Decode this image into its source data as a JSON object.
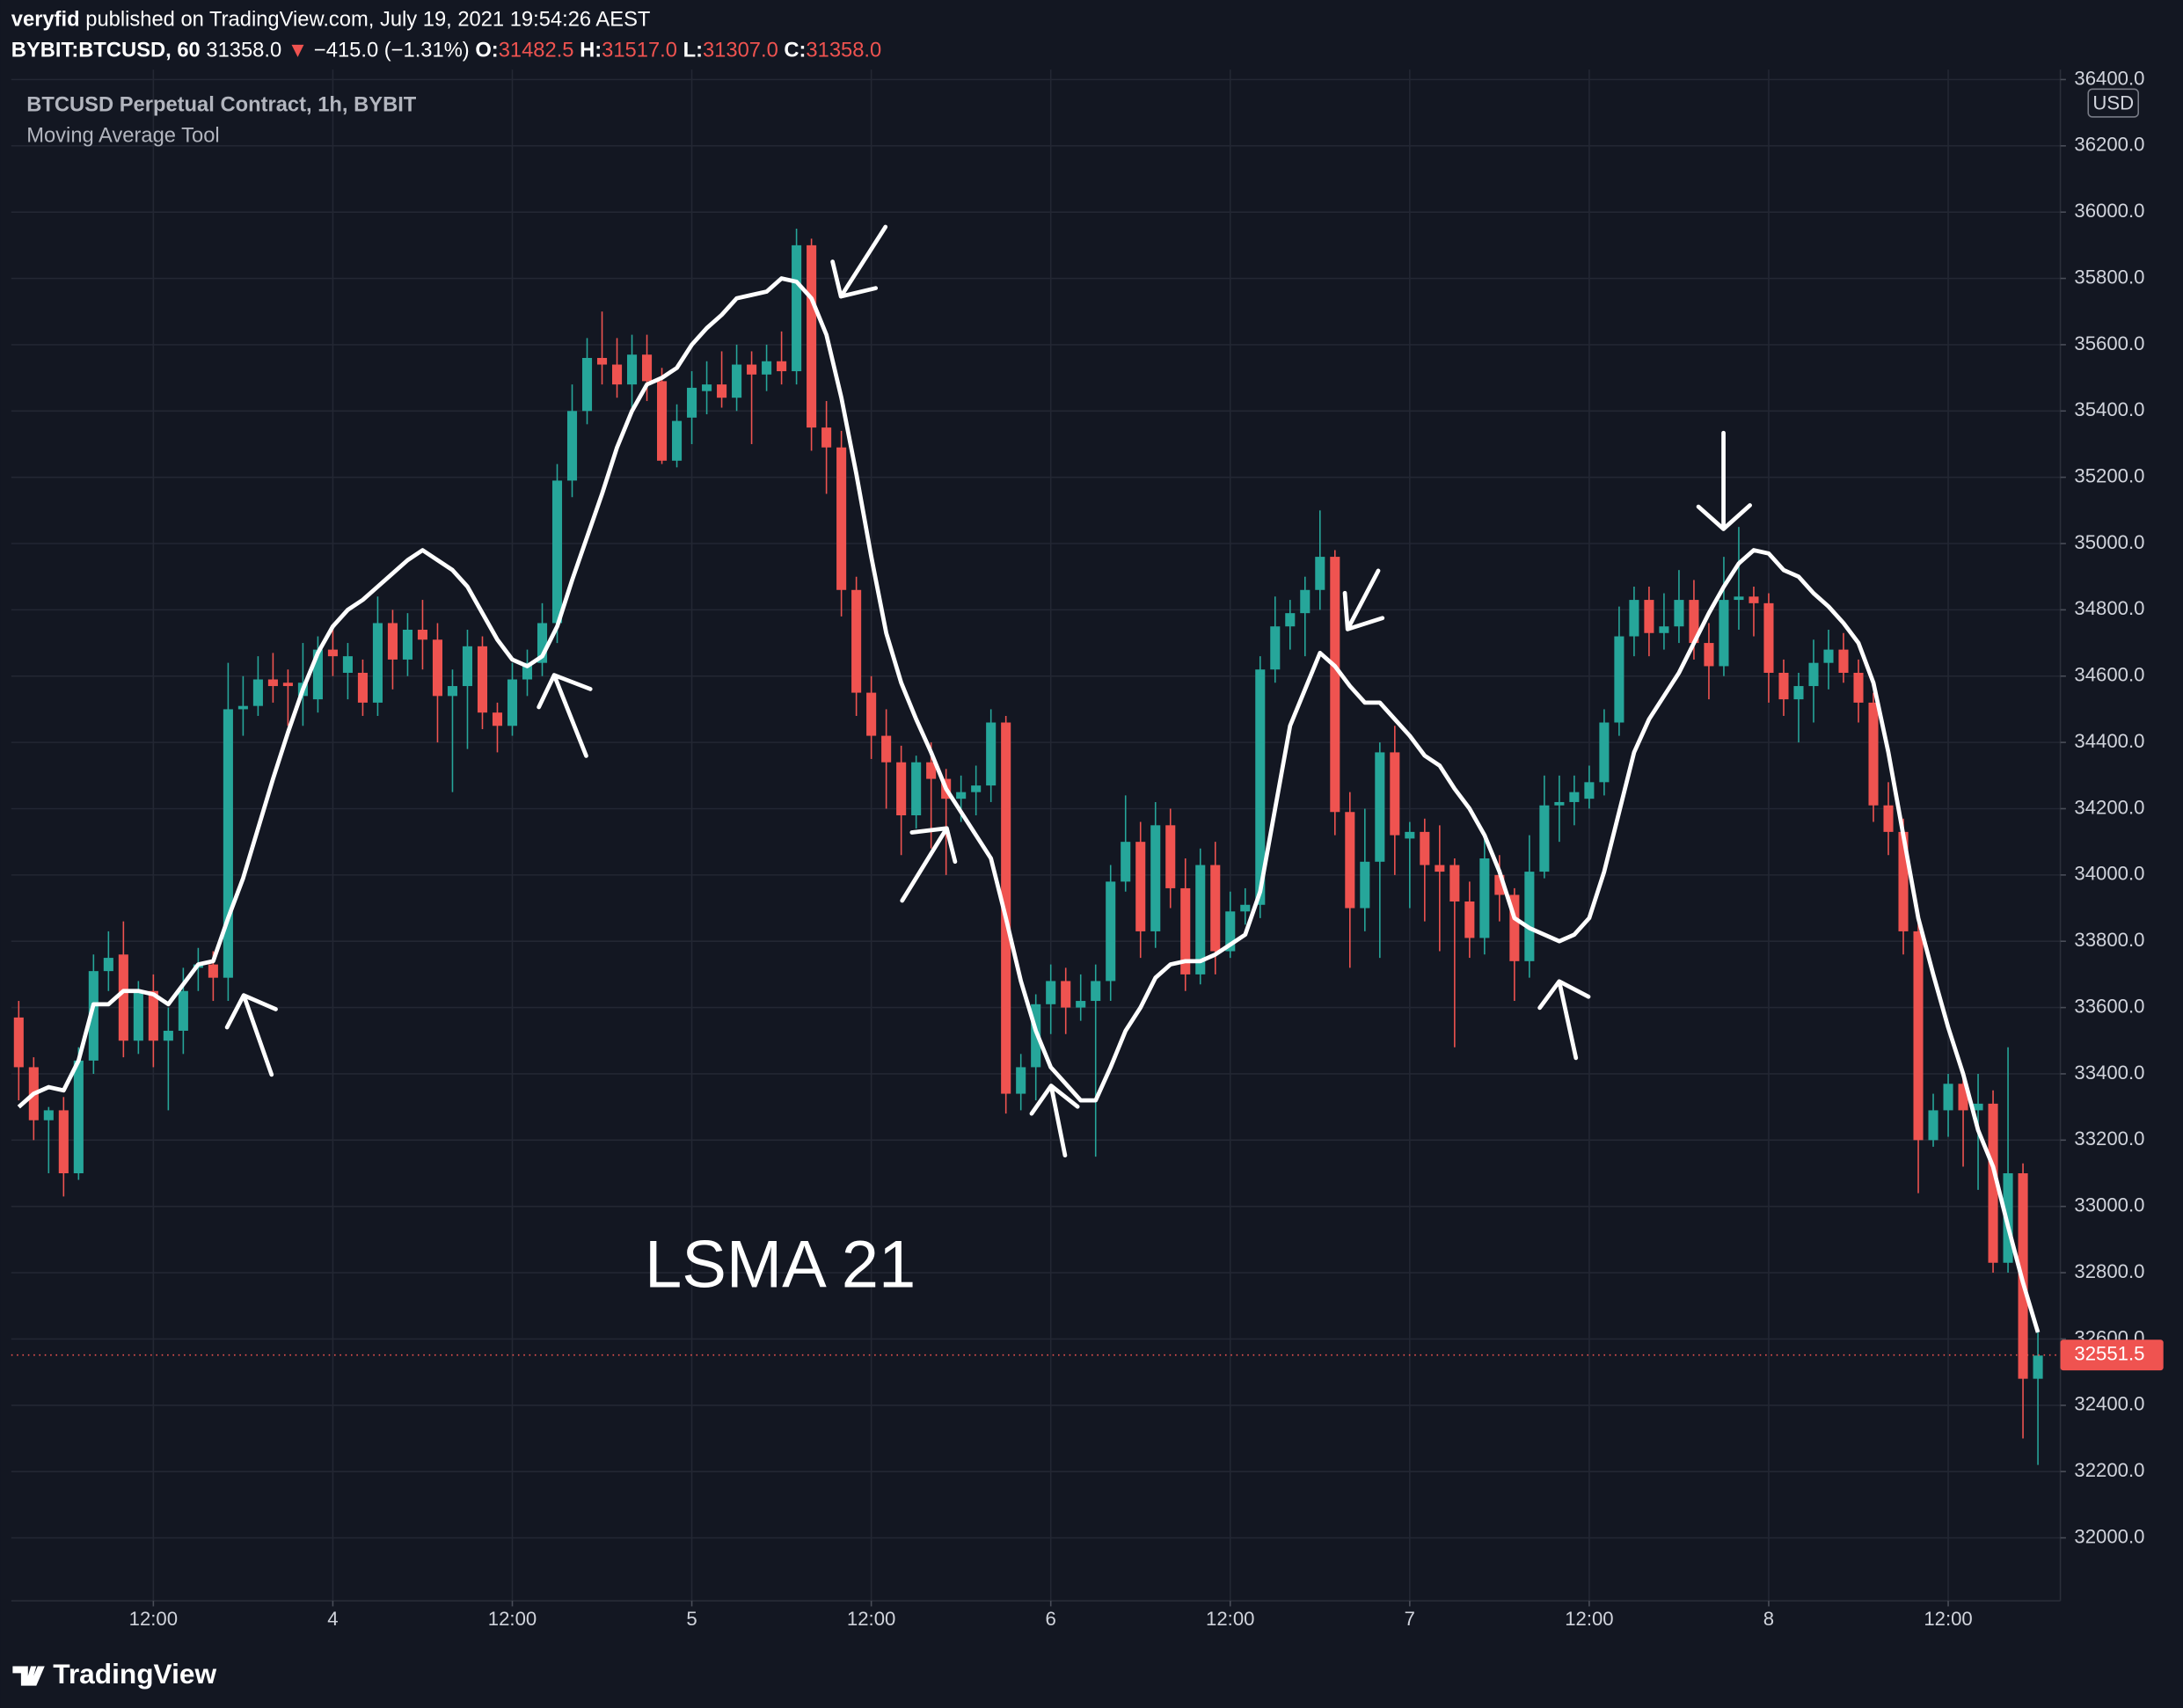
{
  "header": {
    "author": "veryfid",
    "published": "published on TradingView.com, July 19, 2021 19:54:26 AEST"
  },
  "quote": {
    "symbol": "BYBIT:BTCUSD, 60",
    "last": "31358.0",
    "change": "−415.0 (−1.31%)",
    "fields": [
      {
        "label": "O:",
        "value": "31482.5"
      },
      {
        "label": "H:",
        "value": "31517.0"
      },
      {
        "label": "L:",
        "value": "31307.0"
      },
      {
        "label": "C:",
        "value": "31358.0"
      }
    ]
  },
  "chart_data": {
    "type": "candlestick",
    "title": "BTCUSD Perpetual Contract, 1h, BYBIT",
    "annotation": "LSMA 21",
    "unit": "USD",
    "last_price": 32551.5,
    "up_color": "#26a69a",
    "down_color": "#ef5350",
    "grid": true,
    "open": [
      33570,
      33420,
      33260,
      33290,
      33100,
      33440,
      33710,
      33760,
      33500,
      33650,
      33500,
      33530,
      33720,
      33730,
      33690,
      34500,
      34510,
      34590,
      34580,
      34540,
      34530,
      34680,
      34610,
      34610,
      34520,
      34760,
      34650,
      34740,
      34710,
      34540,
      34570,
      34690,
      34490,
      34450,
      34590,
      34640,
      34760,
      35190,
      35400,
      35560,
      35540,
      35480,
      35570,
      35490,
      35250,
      35380,
      35460,
      35480,
      35440,
      35540,
      35510,
      35550,
      35520,
      35900,
      35350,
      35290,
      34860,
      34550,
      34420,
      34340,
      34180,
      34340,
      34290,
      34230,
      34250,
      34270,
      34460,
      33340,
      33420,
      33610,
      33680,
      33600,
      33620,
      33680,
      33980,
      34100,
      33830,
      34150,
      33960,
      33700,
      34030,
      33770,
      33890,
      33910,
      34620,
      34750,
      34790,
      34860,
      34960,
      34190,
      33900,
      34040,
      34370,
      34110,
      34130,
      34030,
      34030,
      33920,
      33810,
      34000,
      33940,
      33740,
      34010,
      34210,
      34220,
      34230,
      34280,
      34460,
      34720,
      34830,
      34730,
      34750,
      34830,
      34700,
      34630,
      34830,
      34840,
      34820,
      34610,
      34530,
      34570,
      34640,
      34680,
      34610,
      34520,
      34210,
      34130,
      33830,
      33200,
      33290,
      33370,
      33290,
      33310,
      32830,
      33100,
      32480
    ],
    "high": [
      33620,
      33450,
      33300,
      33330,
      33480,
      33760,
      33830,
      33860,
      33680,
      33700,
      33600,
      33720,
      33780,
      33770,
      34640,
      34600,
      34660,
      34670,
      34620,
      34700,
      34720,
      34740,
      34700,
      34650,
      34840,
      34800,
      34790,
      34830,
      34760,
      34620,
      34740,
      34720,
      34520,
      34640,
      34680,
      34820,
      35240,
      35480,
      35620,
      35700,
      35620,
      35630,
      35630,
      35530,
      35420,
      35520,
      35550,
      35580,
      35600,
      35580,
      35600,
      35640,
      35950,
      35920,
      35430,
      35340,
      34900,
      34600,
      34500,
      34390,
      34360,
      34400,
      34320,
      34300,
      34330,
      34500,
      34480,
      33460,
      33640,
      33730,
      33720,
      33700,
      33730,
      34030,
      34240,
      34160,
      34220,
      34200,
      34050,
      34080,
      34100,
      33950,
      33960,
      34660,
      34840,
      34830,
      34900,
      35100,
      34980,
      34250,
      34200,
      34400,
      34450,
      34160,
      34170,
      34150,
      34050,
      33980,
      34110,
      34060,
      33960,
      34120,
      34300,
      34300,
      34300,
      34330,
      34500,
      34810,
      34870,
      34870,
      34850,
      34920,
      34890,
      34760,
      34960,
      35050,
      34870,
      34850,
      34650,
      34610,
      34710,
      34740,
      34730,
      34650,
      34550,
      34280,
      34170,
      33860,
      33340,
      33400,
      33400,
      33400,
      33350,
      33480,
      33130,
      32620
    ],
    "low": [
      33320,
      33200,
      33100,
      33030,
      33080,
      33400,
      33650,
      33450,
      33460,
      33420,
      33290,
      33460,
      33650,
      33620,
      33620,
      34420,
      34480,
      34520,
      34450,
      34450,
      34490,
      34600,
      34530,
      34480,
      34480,
      34560,
      34600,
      34620,
      34400,
      34250,
      34380,
      34440,
      34370,
      34420,
      34540,
      34600,
      34700,
      35140,
      35360,
      35480,
      35440,
      35410,
      35430,
      35240,
      35230,
      35300,
      35390,
      35410,
      35400,
      35300,
      35460,
      35480,
      35480,
      35280,
      35150,
      34780,
      34480,
      34350,
      34200,
      34060,
      34140,
      34080,
      34000,
      34160,
      34180,
      34220,
      33280,
      33290,
      33320,
      33520,
      33520,
      33560,
      33150,
      33620,
      33950,
      33750,
      33780,
      33900,
      33650,
      33670,
      33700,
      33750,
      33850,
      33870,
      34580,
      34680,
      34660,
      34800,
      34120,
      33720,
      33830,
      33750,
      34000,
      33900,
      33860,
      33770,
      33480,
      33750,
      33760,
      33860,
      33620,
      33690,
      33990,
      34100,
      34150,
      34200,
      34240,
      34420,
      34660,
      34660,
      34680,
      34700,
      34650,
      34530,
      34600,
      34740,
      34720,
      34520,
      34480,
      34400,
      34460,
      34560,
      34580,
      34460,
      34160,
      34060,
      33760,
      33040,
      33180,
      33210,
      33120,
      33050,
      32800,
      32800,
      32300,
      32220
    ],
    "close": [
      33420,
      33260,
      33290,
      33100,
      33440,
      33710,
      33750,
      33500,
      33650,
      33500,
      33530,
      33650,
      33730,
      33690,
      34500,
      34510,
      34590,
      34570,
      34570,
      34580,
      34680,
      34660,
      34660,
      34520,
      34760,
      34650,
      34740,
      34710,
      34540,
      34570,
      34690,
      34490,
      34450,
      34590,
      34640,
      34760,
      35190,
      35400,
      35560,
      35540,
      35480,
      35570,
      35490,
      35250,
      35370,
      35470,
      35480,
      35440,
      35540,
      35510,
      35550,
      35520,
      35900,
      35350,
      35290,
      34860,
      34550,
      34420,
      34340,
      34180,
      34340,
      34290,
      34230,
      34250,
      34270,
      34460,
      33340,
      33420,
      33610,
      33680,
      33600,
      33620,
      33680,
      33980,
      34100,
      33830,
      34150,
      33960,
      33700,
      34030,
      33770,
      33890,
      33910,
      34620,
      34750,
      34790,
      34860,
      34960,
      34190,
      33900,
      34040,
      34370,
      34120,
      34130,
      34030,
      34010,
      33920,
      33810,
      34050,
      33940,
      33740,
      34010,
      34210,
      34220,
      34250,
      34280,
      34460,
      34720,
      34830,
      34730,
      34750,
      34830,
      34700,
      34630,
      34830,
      34840,
      34820,
      34610,
      34530,
      34570,
      34640,
      34680,
      34610,
      34520,
      34210,
      34130,
      33830,
      33200,
      33290,
      33370,
      33290,
      33310,
      32830,
      33100,
      32480,
      32550
    ],
    "series": [
      {
        "name": "Moving Average Tool",
        "color": "#ffffff",
        "values": [
          33300,
          33340,
          33360,
          33350,
          33440,
          33610,
          33610,
          33650,
          33650,
          33640,
          33610,
          33670,
          33730,
          33740,
          33870,
          33990,
          34140,
          34290,
          34430,
          34560,
          34670,
          34750,
          34800,
          34830,
          34870,
          34910,
          34950,
          34980,
          34950,
          34920,
          34870,
          34790,
          34710,
          34650,
          34630,
          34660,
          34750,
          34890,
          35020,
          35150,
          35290,
          35400,
          35480,
          35500,
          35530,
          35600,
          35650,
          35690,
          35740,
          35750,
          35760,
          35800,
          35790,
          35740,
          35630,
          35440,
          35210,
          34960,
          34730,
          34580,
          34470,
          34370,
          34260,
          34190,
          34120,
          34050,
          33870,
          33680,
          33530,
          33420,
          33370,
          33320,
          33320,
          33420,
          33530,
          33600,
          33690,
          33730,
          33740,
          33740,
          33760,
          33790,
          33820,
          33950,
          34200,
          34450,
          34560,
          34670,
          34630,
          34570,
          34520,
          34520,
          34470,
          34420,
          34360,
          34330,
          34260,
          34200,
          34120,
          34010,
          33870,
          33840,
          33820,
          33800,
          33820,
          33870,
          34010,
          34190,
          34370,
          34470,
          34540,
          34610,
          34700,
          34790,
          34870,
          34940,
          34980,
          34970,
          34920,
          34900,
          34850,
          34810,
          34760,
          34700,
          34580,
          34370,
          34120,
          33870,
          33700,
          33540,
          33400,
          33230,
          33120,
          32940,
          32770,
          32620
        ]
      }
    ],
    "xlim": [
      -0.5,
      136.5
    ],
    "xticks": [
      {
        "value": 9,
        "label": "12:00"
      },
      {
        "value": 21,
        "label": "4"
      },
      {
        "value": 33,
        "label": "12:00"
      },
      {
        "value": 45,
        "label": "5"
      },
      {
        "value": 57,
        "label": "12:00"
      },
      {
        "value": 69,
        "label": "6"
      },
      {
        "value": 81,
        "label": "12:00"
      },
      {
        "value": 93,
        "label": "7"
      },
      {
        "value": 105,
        "label": "12:00"
      },
      {
        "value": 117,
        "label": "8"
      },
      {
        "value": 129,
        "label": "12:00"
      }
    ],
    "ylim": [
      31810,
      36430
    ],
    "yticks": [
      {
        "value": 32000,
        "label": "32000.0"
      },
      {
        "value": 32200,
        "label": "32200.0"
      },
      {
        "value": 32400,
        "label": "32400.0"
      },
      {
        "value": 32600,
        "label": "32600.0"
      },
      {
        "value": 32800,
        "label": "32800.0"
      },
      {
        "value": 33000,
        "label": "33000.0"
      },
      {
        "value": 33200,
        "label": "33200.0"
      },
      {
        "value": 33400,
        "label": "33400.0"
      },
      {
        "value": 33600,
        "label": "33600.0"
      },
      {
        "value": 33800,
        "label": "33800.0"
      },
      {
        "value": 34000,
        "label": "34000.0"
      },
      {
        "value": 34200,
        "label": "34200.0"
      },
      {
        "value": 34400,
        "label": "34400.0"
      },
      {
        "value": 34600,
        "label": "34600.0"
      },
      {
        "value": 34800,
        "label": "34800.0"
      },
      {
        "value": 35000,
        "label": "35000.0"
      },
      {
        "value": 35200,
        "label": "35200.0"
      },
      {
        "value": 35400,
        "label": "35400.0"
      },
      {
        "value": 35600,
        "label": "35600.0"
      },
      {
        "value": 35800,
        "label": "35800.0"
      },
      {
        "value": 36000,
        "label": "36000.0"
      },
      {
        "value": 36200,
        "label": "36200.0"
      },
      {
        "value": 36400,
        "label": "36400.0"
      }
    ]
  },
  "footer": {
    "brand": "TradingView"
  }
}
